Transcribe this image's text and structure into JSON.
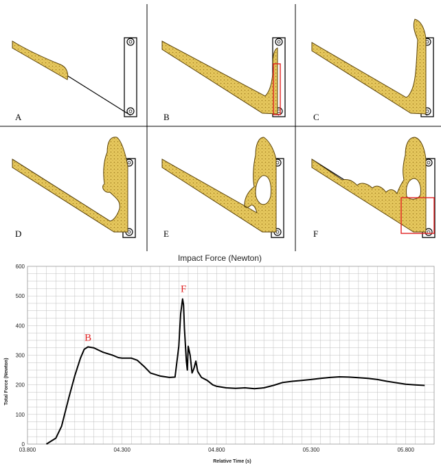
{
  "panels": [
    {
      "letter": "A"
    },
    {
      "letter": "B"
    },
    {
      "letter": "C"
    },
    {
      "letter": "D"
    },
    {
      "letter": "E"
    },
    {
      "letter": "F"
    }
  ],
  "colors": {
    "fluid_fill": "#e6c85e",
    "fluid_stroke": "#5a4208",
    "highlight_box": "#e02020",
    "curve": "#000000",
    "grid": "#bdbdbd"
  },
  "chart_data": {
    "type": "line",
    "title": "Impact Force (Newton)",
    "xlabel": "Relative Time (s)",
    "ylabel": "Total Force (Newton)",
    "xlim": [
      3.8,
      5.95
    ],
    "ylim": [
      0,
      600
    ],
    "x_ticks": [
      {
        "v": 3.8,
        "label": "03.800"
      },
      {
        "v": 4.3,
        "label": "04.300"
      },
      {
        "v": 4.8,
        "label": "04.800"
      },
      {
        "v": 5.3,
        "label": "05.300"
      },
      {
        "v": 5.8,
        "label": "05.800"
      }
    ],
    "y_ticks": [
      0,
      100,
      200,
      300,
      400,
      500,
      600
    ],
    "grid": true,
    "annotations": [
      {
        "label": "B",
        "x": 4.12,
        "y": 325
      },
      {
        "label": "F",
        "x": 4.625,
        "y": 490
      }
    ],
    "series": [
      {
        "x": [
          3.9,
          3.95,
          3.98,
          4.0,
          4.02,
          4.05,
          4.08,
          4.1,
          4.12,
          4.15,
          4.18,
          4.2,
          4.25,
          4.28,
          4.3,
          4.35,
          4.38,
          4.42,
          4.45,
          4.5,
          4.55,
          4.58,
          4.6,
          4.61,
          4.62,
          4.625,
          4.63,
          4.64,
          4.645,
          4.65,
          4.66,
          4.67,
          4.68,
          4.69,
          4.7,
          4.72,
          4.75,
          4.78,
          4.8,
          4.85,
          4.9,
          4.95,
          5.0,
          5.05,
          5.1,
          5.15,
          5.2,
          5.25,
          5.3,
          5.35,
          5.4,
          5.45,
          5.5,
          5.55,
          5.6,
          5.65,
          5.7,
          5.75,
          5.8,
          5.85,
          5.9
        ],
        "y": [
          0,
          20,
          60,
          110,
          160,
          230,
          290,
          320,
          328,
          325,
          316,
          310,
          300,
          292,
          290,
          290,
          283,
          260,
          240,
          230,
          225,
          226,
          330,
          440,
          490,
          470,
          390,
          280,
          250,
          330,
          300,
          240,
          255,
          280,
          245,
          225,
          215,
          200,
          195,
          190,
          188,
          190,
          187,
          190,
          198,
          208,
          212,
          215,
          218,
          222,
          225,
          227,
          226,
          224,
          222,
          218,
          212,
          207,
          202,
          200,
          198
        ]
      }
    ]
  }
}
